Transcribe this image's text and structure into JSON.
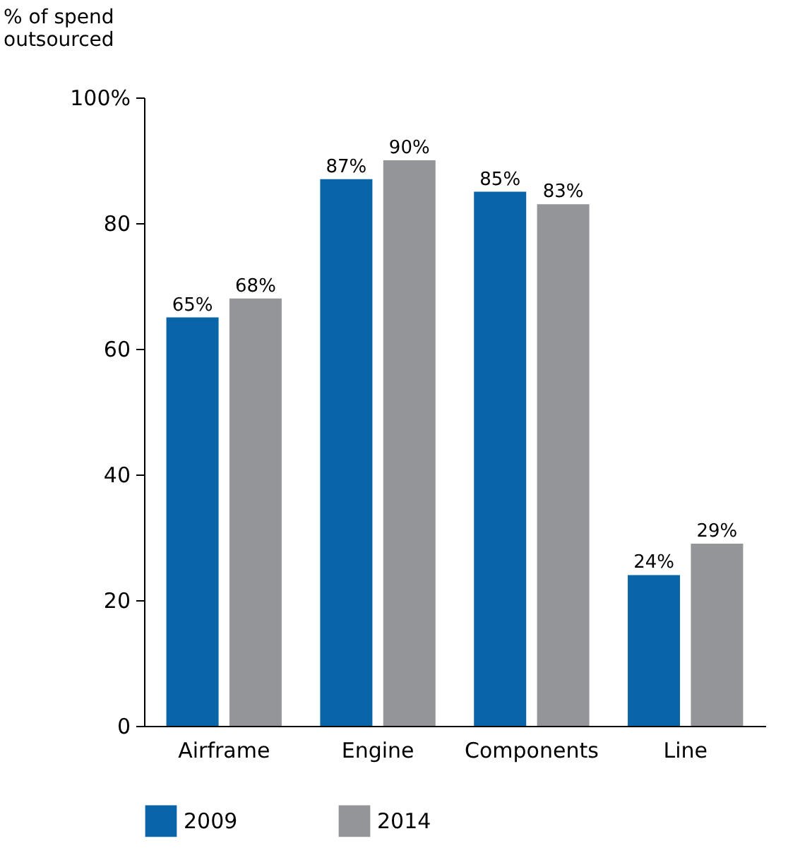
{
  "chart_data": {
    "type": "bar",
    "ylabel": "% of spend outsourced",
    "categories": [
      "Airframe",
      "Engine",
      "Components",
      "Line"
    ],
    "series": [
      {
        "name": "2009",
        "color": "#0a64a8",
        "values": [
          65,
          87,
          85,
          24
        ],
        "value_labels": [
          "65%",
          "87%",
          "85%",
          "24%"
        ]
      },
      {
        "name": "2014",
        "color": "#939598",
        "values": [
          68,
          90,
          83,
          29
        ],
        "value_labels": [
          "68%",
          "90%",
          "83%",
          "29%"
        ]
      }
    ],
    "ylim": [
      0,
      100
    ],
    "yticks": [
      0,
      20,
      40,
      60,
      80,
      {
        "value": 100,
        "label": "100%"
      }
    ],
    "grid": false,
    "legend": "bottom"
  }
}
